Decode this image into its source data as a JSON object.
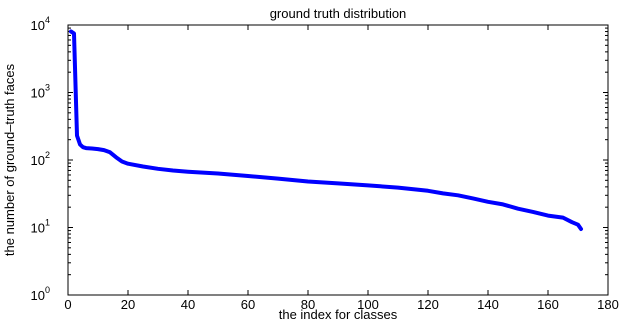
{
  "chart_data": {
    "type": "line",
    "title": "ground truth distribution",
    "xlabel": "the index for classes",
    "ylabel": "the number of ground–truth faces",
    "xlim": [
      0,
      180
    ],
    "ylim": [
      1,
      10000
    ],
    "yscale": "log",
    "x_ticks": [
      "0",
      "20",
      "40",
      "60",
      "80",
      "100",
      "120",
      "140",
      "160",
      "180"
    ],
    "y_ticks": [
      {
        "base": "10",
        "exp": "0"
      },
      {
        "base": "10",
        "exp": "1"
      },
      {
        "base": "10",
        "exp": "2"
      },
      {
        "base": "10",
        "exp": "3"
      },
      {
        "base": "10",
        "exp": "4"
      }
    ],
    "grid": false,
    "series": [
      {
        "color": "#0000ff",
        "x": [
          1,
          2,
          3,
          4,
          5,
          6,
          8,
          10,
          12,
          14,
          16,
          18,
          20,
          25,
          30,
          35,
          40,
          50,
          60,
          70,
          80,
          90,
          100,
          110,
          120,
          125,
          130,
          135,
          140,
          145,
          150,
          155,
          160,
          165,
          168,
          170,
          171
        ],
        "y": [
          8000,
          7500,
          230,
          170,
          155,
          150,
          148,
          145,
          140,
          130,
          110,
          95,
          88,
          80,
          74,
          70,
          67,
          63,
          58,
          53,
          48,
          45,
          42,
          39,
          35,
          32,
          30,
          27,
          24,
          22,
          19,
          17,
          15,
          14,
          12,
          11,
          9.5
        ]
      }
    ]
  }
}
